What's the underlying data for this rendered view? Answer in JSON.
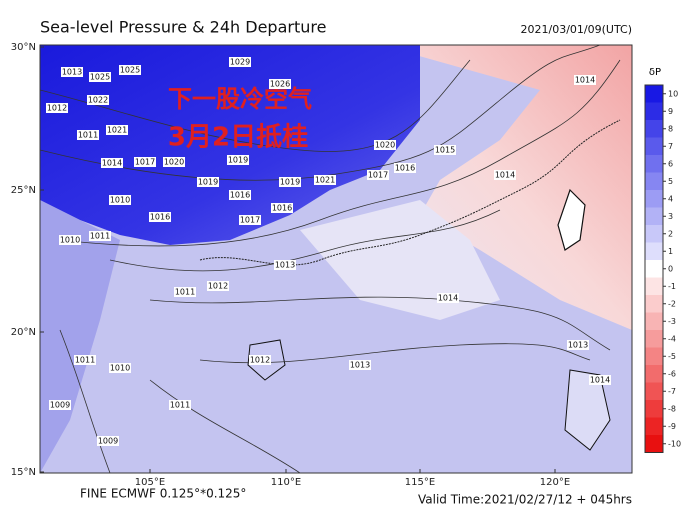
{
  "title": "Sea-level Pressure & 24h Departure",
  "datetime": "2021/03/01/09(UTC)",
  "annotation": [
    "下一股冷空气",
    "3月2日抵桂"
  ],
  "map": {
    "lat_labels": [
      "30°N",
      "25°N",
      "20°N",
      "15°N"
    ],
    "lon_labels": [
      "105°E",
      "110°E",
      "115°E",
      "120°E"
    ]
  },
  "colorbar": {
    "label": "δP",
    "ticks": [
      10,
      9,
      8,
      7,
      6,
      5,
      4,
      3,
      2,
      1,
      0,
      -1,
      -2,
      -3,
      -4,
      -5,
      -6,
      -7,
      -8,
      -9,
      -10
    ],
    "colors": [
      "#1818e4",
      "#2c2ce6",
      "#4444e9",
      "#5a5aec",
      "#7070ef",
      "#8686f2",
      "#9c9cf4",
      "#b2b2f6",
      "#c8c8f9",
      "#dedefc",
      "#ffffff",
      "#fde4e4",
      "#fbcccc",
      "#f8b4b4",
      "#f69c9c",
      "#f48484",
      "#f26c6c",
      "#f05454",
      "#ee3c3c",
      "#ec2424",
      "#e81010"
    ]
  },
  "contour_labels": [
    "1013",
    "1025",
    "1025",
    "1029",
    "1026",
    "1012",
    "1022",
    "1021",
    "1011",
    "1014",
    "1017",
    "1020",
    "1019",
    "1019",
    "1016",
    "1019",
    "1021",
    "1016",
    "1017",
    "1016",
    "1010",
    "1011",
    "1010",
    "1011",
    "1012",
    "1013",
    "1020",
    "1016",
    "1017",
    "1014",
    "1013",
    "1012",
    "1011",
    "1010",
    "1009",
    "1009",
    "1011",
    "1013",
    "1014",
    "1014",
    "1015",
    "1014"
  ],
  "footer": [
    "FINE ECMWF 0.125°*0.125°",
    "Valid Time:2021/02/27/12 + 045hrs"
  ]
}
